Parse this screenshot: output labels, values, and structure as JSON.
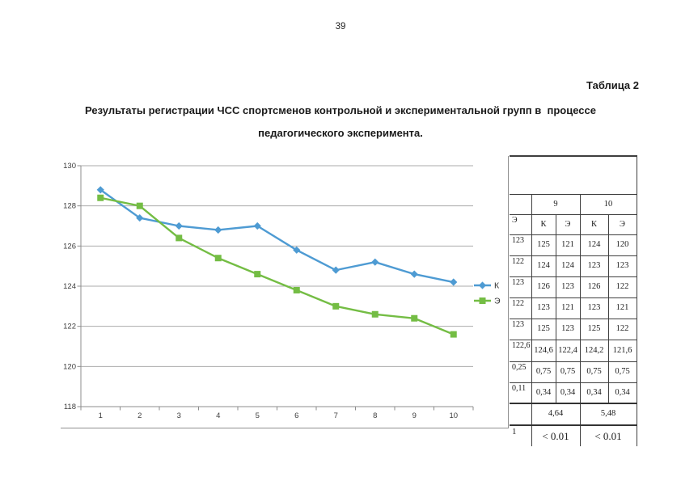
{
  "page_number": "39",
  "caption": "Таблица 2",
  "title": {
    "line1": "Результаты регистрации ЧСС спортсменов контрольной и экспериментальной групп в  процессе",
    "line2": "педагогического эксперимента."
  },
  "chart_data": {
    "type": "line",
    "x": [
      1,
      2,
      3,
      4,
      5,
      6,
      7,
      8,
      9,
      10
    ],
    "series": [
      {
        "name": "К",
        "color": "#4E9BD3",
        "marker": "diamond",
        "values": [
          128.8,
          127.4,
          127.0,
          126.8,
          127.0,
          125.8,
          124.8,
          125.2,
          124.6,
          124.2
        ]
      },
      {
        "name": "Э",
        "color": "#74BD44",
        "marker": "square",
        "values": [
          128.4,
          128.0,
          126.4,
          125.4,
          124.6,
          123.8,
          123.0,
          122.6,
          122.4,
          121.6
        ]
      }
    ],
    "title": "",
    "xlabel": "",
    "ylabel": "",
    "ylim": [
      118,
      130
    ],
    "ytick_step": 2,
    "yticks": [
      "130",
      "128",
      "126",
      "124",
      "122",
      "120",
      "118"
    ],
    "grid": true,
    "legend_position": "right",
    "grid_color": "#ababab",
    "axis_color": "#8c8c8c"
  },
  "side_table": {
    "group_headers": [
      "9",
      "10"
    ],
    "sub_header_partial": "Э",
    "sub_headers": [
      "К",
      "Э",
      "К",
      "Э"
    ],
    "data_rows": [
      {
        "partial": "123",
        "values": [
          "125",
          "121",
          "124",
          "120"
        ]
      },
      {
        "partial": "122",
        "values": [
          "124",
          "124",
          "123",
          "123"
        ]
      },
      {
        "partial": "123",
        "values": [
          "126",
          "123",
          "126",
          "122"
        ]
      },
      {
        "partial": "122",
        "values": [
          "123",
          "121",
          "123",
          "121"
        ]
      },
      {
        "partial": "123",
        "values": [
          "125",
          "123",
          "125",
          "122"
        ]
      },
      {
        "partial": "122,6",
        "values": [
          "124,6",
          "122,4",
          "124,2",
          "121,6"
        ]
      },
      {
        "partial": "0,25",
        "values": [
          "0,75",
          "0,75",
          "0,75",
          "0,75"
        ]
      },
      {
        "partial": "0,11",
        "values": [
          "0,34",
          "0,34",
          "0,34",
          "0,34"
        ]
      }
    ],
    "t_row": {
      "partial": "",
      "values": [
        "4,64",
        "5,48"
      ]
    },
    "p_row": {
      "partial": "1",
      "values": [
        "< 0.01",
        "< 0.01"
      ]
    }
  }
}
